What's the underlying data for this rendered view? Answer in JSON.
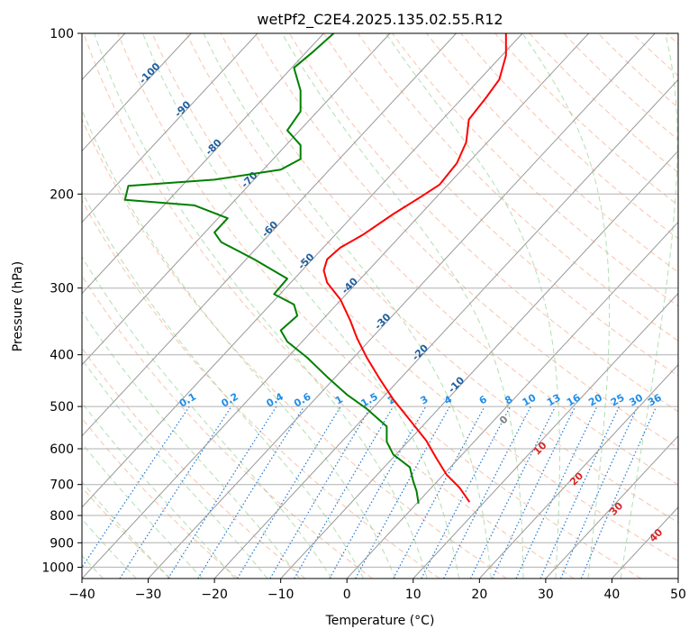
{
  "chart_data": {
    "type": "line",
    "title": "wetPf2_C2E4.2025.135.02.55.R12",
    "xlabel": "Temperature (°C)",
    "ylabel": "Pressure (hPa)",
    "xlim": [
      -40,
      50
    ],
    "ylim": [
      1050,
      100
    ],
    "y_scale": "log",
    "grid": true,
    "x_ticks": [
      -40,
      -30,
      -20,
      -10,
      0,
      10,
      20,
      30,
      40,
      50
    ],
    "x_tick_labels": [
      "−40",
      "−30",
      "−20",
      "−10",
      "0",
      "10",
      "20",
      "30",
      "40",
      "50"
    ],
    "y_ticks": [
      100,
      200,
      300,
      400,
      500,
      600,
      700,
      800,
      900,
      1000
    ],
    "y_tick_labels": [
      "100",
      "200",
      "300",
      "400",
      "500",
      "600",
      "700",
      "800",
      "900",
      "1000"
    ],
    "isotherm_labels": [
      {
        "value": -100,
        "text": "-100",
        "p": 120
      },
      {
        "value": -90,
        "text": "-90",
        "p": 140
      },
      {
        "value": -80,
        "text": "-80",
        "p": 165
      },
      {
        "value": -70,
        "text": "-70",
        "p": 190
      },
      {
        "value": -60,
        "text": "-60",
        "p": 235
      },
      {
        "value": -50,
        "text": "-50",
        "p": 270
      },
      {
        "value": -40,
        "text": "-40",
        "p": 300
      },
      {
        "value": -30,
        "text": "-30",
        "p": 350
      },
      {
        "value": -20,
        "text": "-20",
        "p": 400
      },
      {
        "value": -10,
        "text": "-10",
        "p": 460
      }
    ],
    "mixing_ratio_labels": [
      {
        "value": 0.1,
        "text": "0.1"
      },
      {
        "value": 0.2,
        "text": "0.2"
      },
      {
        "value": 0.4,
        "text": "0.4"
      },
      {
        "value": 0.6,
        "text": "0.6"
      },
      {
        "value": 1,
        "text": "1"
      },
      {
        "value": 1.5,
        "text": "1.5"
      },
      {
        "value": 2,
        "text": "2"
      },
      {
        "value": 3,
        "text": "3"
      },
      {
        "value": 4,
        "text": "4"
      },
      {
        "value": 6,
        "text": "6"
      },
      {
        "value": 8,
        "text": "8"
      },
      {
        "value": 10,
        "text": "10"
      },
      {
        "value": 13,
        "text": "13"
      },
      {
        "value": 16,
        "text": "16"
      },
      {
        "value": 20,
        "text": "20"
      },
      {
        "value": 25,
        "text": "25"
      },
      {
        "value": 30,
        "text": "30"
      },
      {
        "value": 36,
        "text": "36"
      }
    ],
    "moist_adiabat_labels": [
      {
        "value": 0,
        "text": "0",
        "color": "#808080"
      },
      {
        "value": 10,
        "text": "10",
        "color": "#d62728"
      },
      {
        "value": 20,
        "text": "20",
        "color": "#d62728"
      },
      {
        "value": 30,
        "text": "30",
        "color": "#d62728"
      },
      {
        "value": 40,
        "text": "40",
        "color": "#d62728"
      }
    ],
    "series": [
      {
        "color": "#ff0000",
        "points": [
          [
            24,
            100
          ],
          [
            24,
            110
          ],
          [
            23,
            122
          ],
          [
            21,
            132
          ],
          [
            18.4,
            145
          ],
          [
            18,
            160
          ],
          [
            16.6,
            175
          ],
          [
            14,
            192
          ],
          [
            11,
            203
          ],
          [
            7,
            218
          ],
          [
            2.5,
            238
          ],
          [
            -1,
            252
          ],
          [
            -3,
            265
          ],
          [
            -3.5,
            278
          ],
          [
            -3,
            293
          ],
          [
            -1,
            315
          ],
          [
            0.5,
            345
          ],
          [
            1.5,
            372
          ],
          [
            3,
            405
          ],
          [
            5,
            445
          ],
          [
            7,
            485
          ],
          [
            9.5,
            530
          ],
          [
            12,
            580
          ],
          [
            13.5,
            625
          ],
          [
            15,
            670
          ],
          [
            17,
            710
          ],
          [
            18.5,
            755
          ]
        ]
      },
      {
        "color": "#008000",
        "points": [
          [
            -2,
            100
          ],
          [
            -5,
            108
          ],
          [
            -8,
            116
          ],
          [
            -7,
            128
          ],
          [
            -7,
            140
          ],
          [
            -9,
            152
          ],
          [
            -7,
            162
          ],
          [
            -7,
            172
          ],
          [
            -10,
            180
          ],
          [
            -20,
            188
          ],
          [
            -33,
            193
          ],
          [
            -33.5,
            205
          ],
          [
            -23,
            210
          ],
          [
            -18,
            222
          ],
          [
            -20,
            236
          ],
          [
            -19,
            246
          ],
          [
            -14,
            265
          ],
          [
            -9,
            288
          ],
          [
            -11,
            308
          ],
          [
            -8,
            322
          ],
          [
            -7.5,
            338
          ],
          [
            -10,
            360
          ],
          [
            -9,
            378
          ],
          [
            -6,
            405
          ],
          [
            -3,
            440
          ],
          [
            0,
            475
          ],
          [
            3,
            505
          ],
          [
            6,
            545
          ],
          [
            6,
            582
          ],
          [
            7,
            615
          ],
          [
            9.5,
            650
          ],
          [
            10,
            690
          ],
          [
            10.5,
            720
          ],
          [
            10.8,
            760
          ]
        ]
      }
    ]
  }
}
